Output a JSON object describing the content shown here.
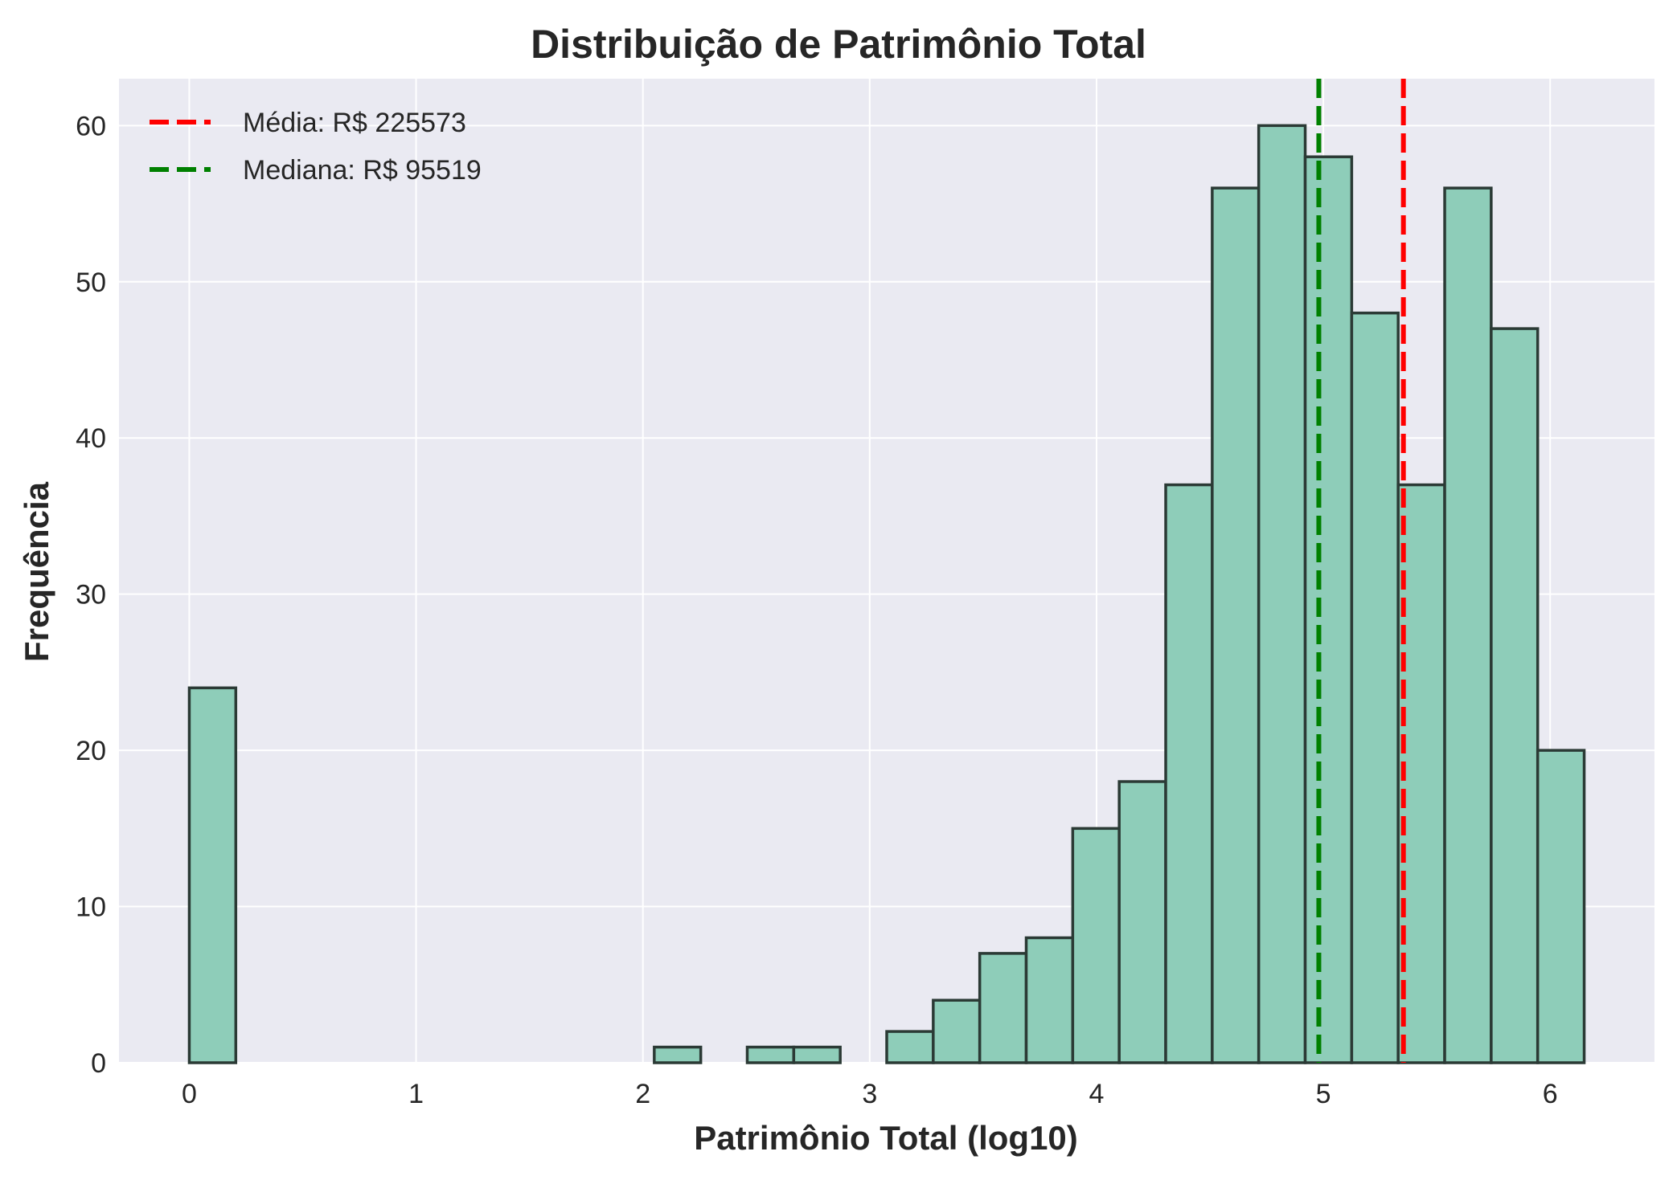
{
  "chart_data": {
    "type": "histogram",
    "title": "Distribuição de Patrimônio Total",
    "xlabel": "Patrimônio Total (log10)",
    "ylabel": "Frequência",
    "xlim": [
      -0.31,
      6.46
    ],
    "ylim": [
      0,
      63
    ],
    "xticks": [
      0,
      1,
      2,
      3,
      4,
      5,
      6
    ],
    "yticks": [
      0,
      10,
      20,
      30,
      40,
      50,
      60
    ],
    "grid": true,
    "legend_position": "top-left",
    "bin_edges": [
      0,
      0.205,
      0.41,
      0.615,
      0.82,
      1.025,
      1.23,
      1.435,
      1.64,
      1.845,
      2.05,
      2.255,
      2.46,
      2.665,
      2.87,
      3.075,
      3.28,
      3.485,
      3.69,
      3.895,
      4.1,
      4.305,
      4.51,
      4.715,
      4.92,
      5.125,
      5.33,
      5.535,
      5.74,
      5.945,
      6.15
    ],
    "counts": [
      24,
      0,
      0,
      0,
      0,
      0,
      0,
      0,
      0,
      0,
      1,
      0,
      1,
      1,
      0,
      2,
      4,
      7,
      8,
      15,
      18,
      37,
      56,
      60,
      58,
      48,
      37,
      56,
      47,
      20
    ],
    "bar_color": "#8ecdb9",
    "bar_edge_color": "#2b3a35",
    "reference_lines": [
      {
        "label": "Média: R$ 225573",
        "x": 5.353,
        "color": "#ff0000"
      },
      {
        "label": "Mediana: R$ 95519",
        "x": 4.98,
        "color": "#008000"
      }
    ]
  }
}
